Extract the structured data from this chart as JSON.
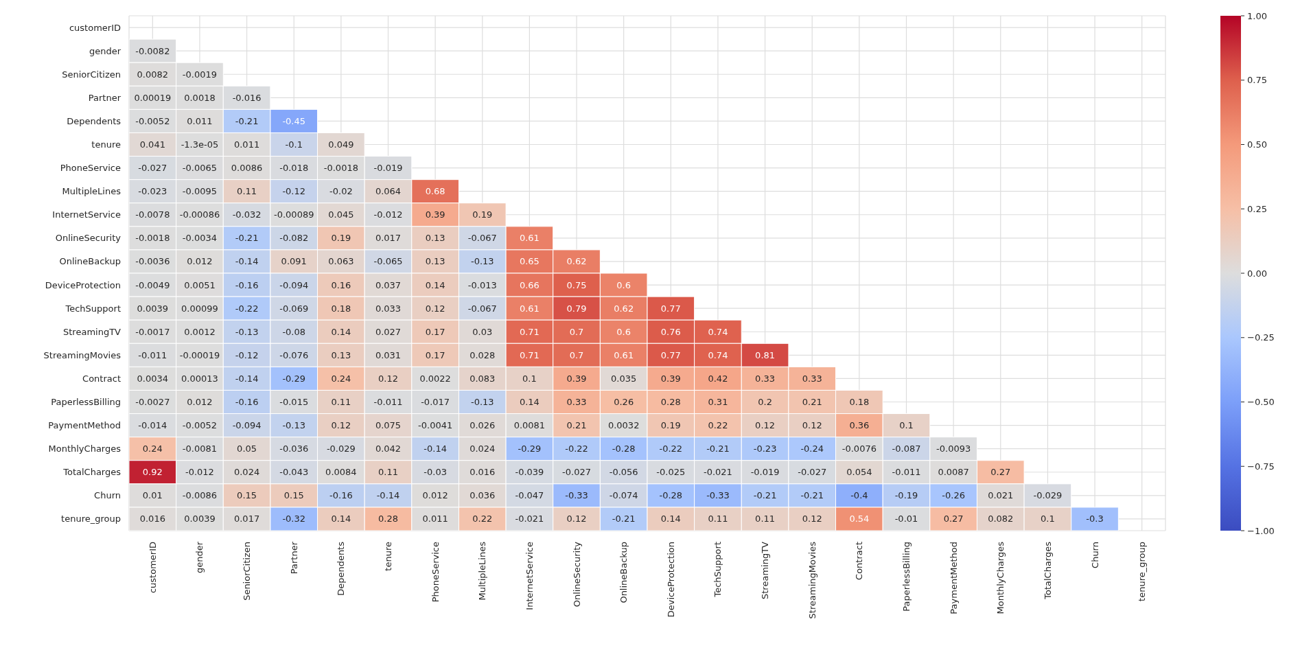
{
  "chart_data": {
    "type": "heatmap",
    "categories": [
      "customerID",
      "gender",
      "SeniorCitizen",
      "Partner",
      "Dependents",
      "tenure",
      "PhoneService",
      "MultipleLines",
      "InternetService",
      "OnlineSecurity",
      "OnlineBackup",
      "DeviceProtection",
      "TechSupport",
      "StreamingTV",
      "StreamingMovies",
      "Contract",
      "PaperlessBilling",
      "PaymentMethod",
      "MonthlyCharges",
      "TotalCharges",
      "Churn",
      "tenure_group"
    ],
    "y_categories": [
      "customerID",
      "gender",
      "SeniorCitizen",
      "Partner",
      "Dependents",
      "tenure",
      "PhoneService",
      "MultipleLines",
      "InternetService",
      "OnlineSecurity",
      "OnlineBackup",
      "DeviceProtection",
      "TechSupport",
      "StreamingTV",
      "StreamingMovies",
      "Contract",
      "PaperlessBilling",
      "PaymentMethod",
      "MonthlyCharges",
      "TotalCharges",
      "Churn",
      "tenure_group"
    ],
    "cells": [
      [
        null,
        null,
        null,
        null,
        null,
        null,
        null,
        null,
        null,
        null,
        null,
        null,
        null,
        null,
        null,
        null,
        null,
        null,
        null,
        null,
        null,
        null
      ],
      [
        -0.0082,
        null,
        null,
        null,
        null,
        null,
        null,
        null,
        null,
        null,
        null,
        null,
        null,
        null,
        null,
        null,
        null,
        null,
        null,
        null,
        null,
        null
      ],
      [
        0.0082,
        -0.0019,
        null,
        null,
        null,
        null,
        null,
        null,
        null,
        null,
        null,
        null,
        null,
        null,
        null,
        null,
        null,
        null,
        null,
        null,
        null,
        null
      ],
      [
        0.00019,
        0.0018,
        -0.016,
        null,
        null,
        null,
        null,
        null,
        null,
        null,
        null,
        null,
        null,
        null,
        null,
        null,
        null,
        null,
        null,
        null,
        null,
        null
      ],
      [
        -0.0052,
        0.011,
        -0.21,
        -0.45,
        null,
        null,
        null,
        null,
        null,
        null,
        null,
        null,
        null,
        null,
        null,
        null,
        null,
        null,
        null,
        null,
        null,
        null
      ],
      [
        0.041,
        -1.3e-05,
        0.011,
        -0.1,
        0.049,
        null,
        null,
        null,
        null,
        null,
        null,
        null,
        null,
        null,
        null,
        null,
        null,
        null,
        null,
        null,
        null,
        null
      ],
      [
        -0.027,
        -0.0065,
        0.0086,
        -0.018,
        -0.0018,
        -0.019,
        null,
        null,
        null,
        null,
        null,
        null,
        null,
        null,
        null,
        null,
        null,
        null,
        null,
        null,
        null,
        null
      ],
      [
        -0.023,
        -0.0095,
        0.11,
        -0.12,
        -0.02,
        0.064,
        0.68,
        null,
        null,
        null,
        null,
        null,
        null,
        null,
        null,
        null,
        null,
        null,
        null,
        null,
        null,
        null
      ],
      [
        -0.0078,
        -0.00086,
        -0.032,
        -0.00089,
        0.045,
        -0.012,
        0.39,
        0.19,
        null,
        null,
        null,
        null,
        null,
        null,
        null,
        null,
        null,
        null,
        null,
        null,
        null,
        null
      ],
      [
        -0.0018,
        -0.0034,
        -0.21,
        -0.082,
        0.19,
        0.017,
        0.13,
        -0.067,
        0.61,
        null,
        null,
        null,
        null,
        null,
        null,
        null,
        null,
        null,
        null,
        null,
        null,
        null
      ],
      [
        -0.0036,
        0.012,
        -0.14,
        0.091,
        0.063,
        -0.065,
        0.13,
        -0.13,
        0.65,
        0.62,
        null,
        null,
        null,
        null,
        null,
        null,
        null,
        null,
        null,
        null,
        null,
        null
      ],
      [
        -0.0049,
        0.0051,
        -0.16,
        -0.094,
        0.16,
        0.037,
        0.14,
        -0.013,
        0.66,
        0.75,
        0.6,
        null,
        null,
        null,
        null,
        null,
        null,
        null,
        null,
        null,
        null,
        null
      ],
      [
        0.0039,
        0.00099,
        -0.22,
        -0.069,
        0.18,
        0.033,
        0.12,
        -0.067,
        0.61,
        0.79,
        0.62,
        0.77,
        null,
        null,
        null,
        null,
        null,
        null,
        null,
        null,
        null,
        null
      ],
      [
        -0.0017,
        0.0012,
        -0.13,
        -0.08,
        0.14,
        0.027,
        0.17,
        0.03,
        0.71,
        0.7,
        0.6,
        0.76,
        0.74,
        null,
        null,
        null,
        null,
        null,
        null,
        null,
        null,
        null
      ],
      [
        -0.011,
        -0.00019,
        -0.12,
        -0.076,
        0.13,
        0.031,
        0.17,
        0.028,
        0.71,
        0.7,
        0.61,
        0.77,
        0.74,
        0.81,
        null,
        null,
        null,
        null,
        null,
        null,
        null,
        null
      ],
      [
        0.0034,
        0.00013,
        -0.14,
        -0.29,
        0.24,
        0.12,
        0.0022,
        0.083,
        0.1,
        0.39,
        0.035,
        0.39,
        0.42,
        0.33,
        0.33,
        null,
        null,
        null,
        null,
        null,
        null,
        null
      ],
      [
        -0.0027,
        0.012,
        -0.16,
        -0.015,
        0.11,
        -0.011,
        -0.017,
        -0.13,
        0.14,
        0.33,
        0.26,
        0.28,
        0.31,
        0.2,
        0.21,
        0.18,
        null,
        null,
        null,
        null,
        null,
        null
      ],
      [
        -0.014,
        -0.0052,
        -0.094,
        -0.13,
        0.12,
        0.075,
        -0.0041,
        0.026,
        0.0081,
        0.21,
        0.0032,
        0.19,
        0.22,
        0.12,
        0.12,
        0.36,
        0.1,
        null,
        null,
        null,
        null,
        null
      ],
      [
        0.24,
        -0.0081,
        0.05,
        -0.036,
        -0.029,
        0.042,
        -0.14,
        0.024,
        -0.29,
        -0.22,
        -0.28,
        -0.22,
        -0.21,
        -0.23,
        -0.24,
        -0.0076,
        -0.087,
        -0.0093,
        null,
        null,
        null,
        null
      ],
      [
        0.92,
        -0.012,
        0.024,
        -0.043,
        0.0084,
        0.11,
        -0.03,
        0.016,
        -0.039,
        -0.027,
        -0.056,
        -0.025,
        -0.021,
        -0.019,
        -0.027,
        0.054,
        -0.011,
        0.0087,
        0.27,
        null,
        null,
        null
      ],
      [
        0.01,
        -0.0086,
        0.15,
        0.15,
        -0.16,
        -0.14,
        0.012,
        0.036,
        -0.047,
        -0.33,
        -0.074,
        -0.28,
        -0.33,
        -0.21,
        -0.21,
        -0.4,
        -0.19,
        -0.26,
        0.021,
        -0.029,
        null,
        null
      ],
      [
        0.016,
        0.0039,
        0.017,
        -0.32,
        0.14,
        0.28,
        0.011,
        0.22,
        -0.021,
        0.12,
        -0.21,
        0.14,
        0.11,
        0.11,
        0.12,
        0.54,
        -0.01,
        0.27,
        0.082,
        0.1,
        -0.3,
        null
      ]
    ],
    "clim": [
      -1,
      1
    ],
    "cticks": [
      {
        "value": -1,
        "label": "−1.00"
      },
      {
        "value": -0.75,
        "label": "−0.75"
      },
      {
        "value": -0.5,
        "label": "−0.50"
      },
      {
        "value": -0.25,
        "label": "−0.25"
      },
      {
        "value": 0,
        "label": "0.00"
      },
      {
        "value": 0.25,
        "label": "0.25"
      },
      {
        "value": 0.5,
        "label": "0.50"
      },
      {
        "value": 0.75,
        "label": "0.75"
      },
      {
        "value": 1,
        "label": "1.00"
      }
    ],
    "data_labels": true,
    "grid": true
  }
}
